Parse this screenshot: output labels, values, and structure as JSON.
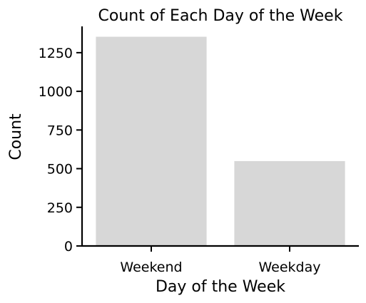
{
  "chart_data": {
    "type": "bar",
    "title": "Count of Each Day of the Week",
    "xlabel": "Day of the Week",
    "ylabel": "Count",
    "categories": [
      "Weekend",
      "Weekday"
    ],
    "values": [
      1353,
      549
    ],
    "ylim": [
      0,
      1420
    ],
    "yticks": [
      0,
      250,
      500,
      750,
      1000,
      1250
    ],
    "grid": false,
    "legend": "none",
    "bar_color": "#d7d7d7",
    "axis_color": "#000000"
  }
}
